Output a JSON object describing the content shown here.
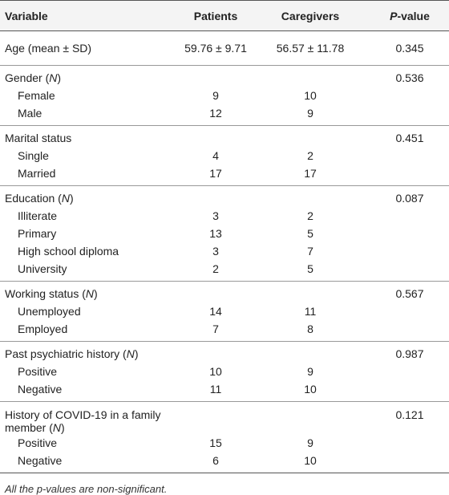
{
  "table": {
    "header": [
      [
        {
          "text": "Variable"
        }
      ],
      [
        {
          "text": "Patients"
        }
      ],
      [
        {
          "text": "Caregivers"
        }
      ],
      [
        {
          "text": "P",
          "italic": true
        },
        {
          "text": "-value"
        }
      ]
    ],
    "sections": [
      {
        "rows": [
          {
            "label": [
              {
                "text": "Age (mean ± SD)"
              }
            ],
            "patients": "59.76 ± 9.71",
            "caregivers": "56.57 ± 11.78",
            "p_value": 0.345
          }
        ]
      },
      {
        "rows": [
          {
            "label": [
              {
                "text": "Gender ("
              },
              {
                "text": "N",
                "italic": true
              },
              {
                "text": ")"
              }
            ],
            "p_value": 0.536
          },
          {
            "label": [
              {
                "text": " Female"
              }
            ],
            "indent": true,
            "patients": 9,
            "caregivers": 10
          },
          {
            "label": [
              {
                "text": "Male"
              }
            ],
            "indent": true,
            "patients": 12,
            "caregivers": 9
          }
        ]
      },
      {
        "rows": [
          {
            "label": [
              {
                "text": "Marital status"
              }
            ],
            "p_value": 0.451
          },
          {
            "label": [
              {
                "text": "Single"
              }
            ],
            "indent": true,
            "patients": 4,
            "caregivers": 2
          },
          {
            "label": [
              {
                "text": "Married"
              }
            ],
            "indent": true,
            "patients": 17,
            "caregivers": 17
          }
        ]
      },
      {
        "rows": [
          {
            "label": [
              {
                "text": "Education ("
              },
              {
                "text": "N",
                "italic": true
              },
              {
                "text": ")"
              }
            ],
            "p_value": 0.087
          },
          {
            "label": [
              {
                "text": "Illiterate"
              }
            ],
            "indent": true,
            "patients": 3,
            "caregivers": 2
          },
          {
            "label": [
              {
                "text": "Primary"
              }
            ],
            "indent": true,
            "patients": 13,
            "caregivers": 5
          },
          {
            "label": [
              {
                "text": "High school diploma"
              }
            ],
            "indent": true,
            "patients": 3,
            "caregivers": 7
          },
          {
            "label": [
              {
                "text": "University"
              }
            ],
            "indent": true,
            "patients": 2,
            "caregivers": 5
          }
        ]
      },
      {
        "rows": [
          {
            "label": [
              {
                "text": "Working status ("
              },
              {
                "text": "N",
                "italic": true
              },
              {
                "text": ")"
              }
            ],
            "p_value": 0.567
          },
          {
            "label": [
              {
                "text": "Unemployed"
              }
            ],
            "indent": true,
            "patients": 14,
            "caregivers": 11
          },
          {
            "label": [
              {
                "text": "Employed"
              }
            ],
            "indent": true,
            "patients": 7,
            "caregivers": 8
          }
        ]
      },
      {
        "rows": [
          {
            "label": [
              {
                "text": "Past psychiatric history ("
              },
              {
                "text": "N",
                "italic": true
              },
              {
                "text": ")"
              }
            ],
            "p_value": 0.987
          },
          {
            "label": [
              {
                "text": "Positive"
              }
            ],
            "indent": true,
            "patients": 10,
            "caregivers": 9
          },
          {
            "label": [
              {
                "text": "Negative"
              }
            ],
            "indent": true,
            "patients": 11,
            "caregivers": 10
          }
        ]
      },
      {
        "rows": [
          {
            "label": [
              {
                "text": "History of COVID-19 in a family member ("
              },
              {
                "text": "N",
                "italic": true
              },
              {
                "text": ")"
              }
            ],
            "p_value": 0.121,
            "tall": true
          },
          {
            "label": [
              {
                "text": "Positive"
              }
            ],
            "indent": true,
            "patients": 15,
            "caregivers": 9
          },
          {
            "label": [
              {
                "text": "Negative"
              }
            ],
            "indent": true,
            "patients": 6,
            "caregivers": 10
          }
        ]
      }
    ],
    "footnote": "All the p-values are non-significant."
  }
}
